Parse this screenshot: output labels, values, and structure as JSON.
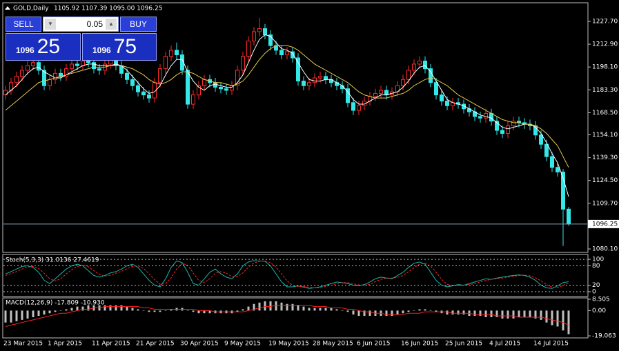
{
  "trade_panel": {
    "sell": "SELL",
    "buy": "BUY",
    "lot": "0.05",
    "bid_big": "1096",
    "bid_small": "25",
    "ask_big": "1096",
    "ask_small": "75"
  },
  "chart_data": [
    {
      "type": "candlestick",
      "title": "GOLD,Daily",
      "subtitle": "1105.92 1107.39 1095.00 1096.25",
      "categories": [
        "23 Mar 2015",
        null,
        null,
        null,
        null,
        null,
        null,
        null,
        "1 Apr 2015",
        null,
        null,
        null,
        null,
        null,
        null,
        null,
        "11 Apr 2015",
        null,
        null,
        null,
        null,
        null,
        null,
        null,
        "21 Apr 2015",
        null,
        null,
        null,
        null,
        null,
        null,
        null,
        "30 Apr 2015",
        null,
        null,
        null,
        null,
        null,
        null,
        null,
        "9 May 2015",
        null,
        null,
        null,
        null,
        null,
        null,
        null,
        "19 May 2015",
        null,
        null,
        null,
        null,
        null,
        null,
        null,
        "28 May 2015",
        null,
        null,
        null,
        null,
        null,
        null,
        null,
        "6 Jun 2015",
        null,
        null,
        null,
        null,
        null,
        null,
        null,
        "16 Jun 2015",
        null,
        null,
        null,
        null,
        null,
        null,
        null,
        "25 Jun 2015",
        null,
        null,
        null,
        null,
        null,
        null,
        null,
        "4 Jul 2015",
        null,
        null,
        null,
        null,
        null,
        null,
        null,
        "14 Jul 2015",
        null,
        null,
        null,
        null,
        null,
        null
      ],
      "open": [
        1180,
        1183,
        1188,
        1192,
        1196,
        1199,
        1201,
        1196,
        1186,
        1190,
        1194,
        1192,
        1197,
        1200,
        1199,
        1202,
        1201,
        1197,
        1196,
        1200,
        1203,
        1199,
        1194,
        1190,
        1186,
        1182,
        1180,
        1178,
        1188,
        1197,
        1205,
        1209,
        1206,
        1196,
        1174,
        1180,
        1186,
        1190,
        1188,
        1185,
        1184,
        1183,
        1186,
        1196,
        1205,
        1215,
        1221,
        1223,
        1219,
        1212,
        1209,
        1206,
        1208,
        1204,
        1189,
        1186,
        1188,
        1191,
        1192,
        1190,
        1188,
        1186,
        1184,
        1175,
        1170,
        1173,
        1176,
        1179,
        1181,
        1183,
        1180,
        1182,
        1186,
        1190,
        1196,
        1200,
        1202,
        1197,
        1188,
        1180,
        1176,
        1173,
        1175,
        1174,
        1171,
        1169,
        1166,
        1165,
        1168,
        1163,
        1157,
        1155,
        1160,
        1163,
        1162,
        1161,
        1160,
        1154,
        1148,
        1140,
        1133,
        1130,
        1105.92
      ],
      "high": [
        1186,
        1191,
        1195,
        1199,
        1202,
        1204,
        1204,
        1199,
        1193,
        1197,
        1197,
        1200,
        1203,
        1203,
        1205,
        1205,
        1204,
        1200,
        1203,
        1206,
        1206,
        1202,
        1197,
        1193,
        1189,
        1185,
        1183,
        1191,
        1200,
        1208,
        1212,
        1214,
        1209,
        1199,
        1183,
        1189,
        1193,
        1193,
        1191,
        1188,
        1187,
        1189,
        1199,
        1208,
        1218,
        1224,
        1230,
        1226,
        1222,
        1215,
        1212,
        1211,
        1211,
        1207,
        1192,
        1191,
        1194,
        1195,
        1195,
        1193,
        1191,
        1189,
        1187,
        1178,
        1176,
        1179,
        1182,
        1184,
        1186,
        1186,
        1185,
        1189,
        1193,
        1199,
        1203,
        1205,
        1205,
        1200,
        1191,
        1183,
        1179,
        1178,
        1178,
        1177,
        1174,
        1172,
        1169,
        1171,
        1171,
        1166,
        1160,
        1163,
        1166,
        1166,
        1165,
        1164,
        1163,
        1157,
        1151,
        1143,
        1136,
        1132,
        1107.39
      ],
      "low": [
        1177,
        1180,
        1185,
        1189,
        1193,
        1196,
        1193,
        1183,
        1183,
        1187,
        1189,
        1189,
        1194,
        1196,
        1196,
        1198,
        1194,
        1193,
        1193,
        1197,
        1196,
        1191,
        1187,
        1183,
        1179,
        1177,
        1175,
        1175,
        1185,
        1194,
        1202,
        1203,
        1193,
        1171,
        1171,
        1177,
        1183,
        1185,
        1182,
        1181,
        1180,
        1180,
        1183,
        1193,
        1202,
        1212,
        1218,
        1216,
        1209,
        1206,
        1203,
        1203,
        1201,
        1186,
        1183,
        1183,
        1185,
        1188,
        1187,
        1185,
        1183,
        1181,
        1172,
        1167,
        1167,
        1170,
        1173,
        1176,
        1178,
        1177,
        1177,
        1179,
        1183,
        1187,
        1193,
        1197,
        1194,
        1185,
        1177,
        1173,
        1170,
        1170,
        1171,
        1168,
        1166,
        1163,
        1162,
        1162,
        1160,
        1154,
        1152,
        1152,
        1157,
        1159,
        1158,
        1157,
        1151,
        1145,
        1137,
        1130,
        1127,
        1082,
        1095.0
      ],
      "close": [
        1183,
        1188,
        1192,
        1196,
        1199,
        1201,
        1196,
        1186,
        1190,
        1194,
        1192,
        1197,
        1200,
        1199,
        1202,
        1201,
        1197,
        1196,
        1200,
        1203,
        1199,
        1194,
        1190,
        1186,
        1182,
        1180,
        1178,
        1188,
        1197,
        1205,
        1209,
        1206,
        1196,
        1174,
        1180,
        1186,
        1190,
        1188,
        1185,
        1184,
        1183,
        1186,
        1196,
        1205,
        1215,
        1221,
        1223,
        1219,
        1212,
        1209,
        1206,
        1208,
        1204,
        1189,
        1186,
        1188,
        1191,
        1192,
        1190,
        1188,
        1186,
        1184,
        1175,
        1170,
        1173,
        1176,
        1179,
        1181,
        1183,
        1180,
        1182,
        1186,
        1190,
        1196,
        1200,
        1202,
        1197,
        1188,
        1180,
        1176,
        1173,
        1175,
        1174,
        1171,
        1169,
        1166,
        1165,
        1168,
        1163,
        1157,
        1155,
        1160,
        1163,
        1162,
        1161,
        1160,
        1154,
        1148,
        1140,
        1133,
        1130,
        1105.92,
        1096.25
      ],
      "up_color": "#ff2a2a",
      "down_color": "#33e8e8",
      "series": [
        {
          "color": "#ffffff",
          "values": [
            1180,
            1183,
            1186,
            1190,
            1194,
            1197,
            1198,
            1195,
            1193,
            1191,
            1191,
            1193,
            1195,
            1197,
            1199,
            1200,
            1200,
            1199,
            1199,
            1199,
            1200,
            1199,
            1196,
            1192,
            1188,
            1184,
            1181,
            1182,
            1186,
            1193,
            1199,
            1203,
            1203,
            1195,
            1189,
            1185,
            1183,
            1186,
            1187,
            1186,
            1185,
            1185,
            1188,
            1193,
            1201,
            1209,
            1216,
            1219,
            1218,
            1214,
            1210,
            1209,
            1207,
            1201,
            1195,
            1190,
            1189,
            1189,
            1190,
            1190,
            1188,
            1186,
            1182,
            1177,
            1174,
            1174,
            1176,
            1178,
            1180,
            1180,
            1181,
            1182,
            1185,
            1189,
            1194,
            1198,
            1199,
            1195,
            1189,
            1183,
            1177,
            1175,
            1174,
            1173,
            1171,
            1169,
            1167,
            1166,
            1165,
            1162,
            1159,
            1158,
            1159,
            1160,
            1161,
            1161,
            1159,
            1155,
            1149,
            1142,
            1136,
            1126,
            1114
          ]
        },
        {
          "color": "#e6c84a",
          "values": [
            1170,
            1173,
            1176,
            1179,
            1182,
            1185,
            1188,
            1189,
            1190,
            1191,
            1192,
            1193,
            1194,
            1195,
            1196,
            1197,
            1198,
            1198,
            1198,
            1199,
            1199,
            1199,
            1198,
            1197,
            1195,
            1193,
            1190,
            1188,
            1187,
            1188,
            1190,
            1193,
            1195,
            1195,
            1194,
            1192,
            1190,
            1189,
            1188,
            1188,
            1187,
            1186,
            1187,
            1189,
            1193,
            1198,
            1203,
            1207,
            1210,
            1212,
            1212,
            1212,
            1211,
            1209,
            1206,
            1203,
            1200,
            1198,
            1196,
            1194,
            1192,
            1190,
            1188,
            1185,
            1182,
            1180,
            1179,
            1178,
            1178,
            1178,
            1179,
            1180,
            1181,
            1183,
            1186,
            1188,
            1190,
            1191,
            1190,
            1188,
            1186,
            1183,
            1180,
            1178,
            1176,
            1174,
            1172,
            1170,
            1168,
            1166,
            1164,
            1163,
            1162,
            1162,
            1161,
            1161,
            1160,
            1158,
            1155,
            1151,
            1147,
            1140,
            1133
          ]
        }
      ],
      "last": 1096.25,
      "ylim": [
        1077.86,
        1239.33
      ],
      "yticks": [
        {
          "value": 1227.7,
          "label": "1227.70"
        },
        {
          "value": 1212.9,
          "label": "1212.90"
        },
        {
          "value": 1198.1,
          "label": "1198.10"
        },
        {
          "value": 1183.3,
          "label": "1183.30"
        },
        {
          "value": 1168.5,
          "label": "1168.50"
        },
        {
          "value": 1154.1,
          "label": "1154.10"
        },
        {
          "value": 1139.3,
          "label": "1139.30"
        },
        {
          "value": 1124.5,
          "label": "1124.50"
        },
        {
          "value": 1109.7,
          "label": "1109.70"
        },
        {
          "value": 1080.1,
          "label": "1080.10"
        }
      ]
    },
    {
      "type": "line",
      "title": "Stoch(5,3,3) 31.0136 27.4619",
      "series": [
        {
          "color": "#20b2aa",
          "values": [
            55,
            62,
            70,
            78,
            80,
            75,
            60,
            35,
            25,
            40,
            55,
            70,
            80,
            85,
            80,
            65,
            50,
            45,
            50,
            58,
            62,
            70,
            80,
            85,
            75,
            55,
            35,
            20,
            15,
            40,
            75,
            95,
            90,
            60,
            25,
            20,
            40,
            60,
            70,
            55,
            45,
            40,
            55,
            80,
            92,
            96,
            95,
            94,
            80,
            55,
            30,
            15,
            15,
            18,
            14,
            10,
            12,
            15,
            20,
            25,
            30,
            28,
            25,
            20,
            18,
            22,
            30,
            40,
            45,
            42,
            40,
            50,
            60,
            75,
            88,
            92,
            85,
            60,
            35,
            20,
            15,
            18,
            22,
            20,
            25,
            30,
            35,
            40,
            38,
            42,
            45,
            48,
            50,
            52,
            50,
            45,
            35,
            20,
            12,
            10,
            18,
            28,
            31.0136
          ]
        },
        {
          "color": "#ff2020",
          "dashed": true,
          "values": [
            50,
            56,
            62,
            70,
            76,
            78,
            72,
            57,
            40,
            33,
            40,
            55,
            68,
            78,
            82,
            77,
            65,
            53,
            48,
            51,
            57,
            63,
            71,
            78,
            80,
            72,
            55,
            37,
            23,
            25,
            43,
            70,
            87,
            82,
            58,
            35,
            28,
            40,
            57,
            62,
            57,
            47,
            47,
            58,
            76,
            89,
            94,
            95,
            90,
            76,
            55,
            33,
            20,
            16,
            16,
            14,
            12,
            12,
            16,
            20,
            25,
            28,
            28,
            24,
            21,
            20,
            23,
            31,
            38,
            42,
            42,
            44,
            50,
            62,
            74,
            85,
            88,
            79,
            60,
            38,
            23,
            18,
            18,
            20,
            22,
            25,
            30,
            35,
            38,
            40,
            42,
            45,
            48,
            50,
            51,
            49,
            43,
            33,
            22,
            14,
            13,
            19,
            27.4619
          ]
        }
      ],
      "ylim": [
        -15,
        113
      ],
      "yticks": [
        100,
        80,
        20,
        0
      ]
    },
    {
      "type": "histogram-line",
      "title": "MACD(12,26,9) -17.809 -10.930",
      "values": [
        -9,
        -9,
        -8,
        -7,
        -6,
        -5,
        -4,
        -3,
        -2,
        -1,
        0,
        1,
        2,
        3,
        3,
        4,
        4,
        4,
        4,
        4,
        4,
        4,
        3,
        2,
        1,
        0,
        -1,
        -1,
        -1,
        0,
        1,
        2,
        2,
        0,
        -1,
        -2,
        -2,
        -2,
        -2,
        -2,
        -2,
        -2,
        -1,
        1,
        3,
        5,
        6,
        7,
        7,
        7,
        6,
        5,
        5,
        4,
        3,
        2,
        2,
        2,
        2,
        2,
        1,
        0,
        -1,
        -3,
        -4,
        -4,
        -4,
        -4,
        -4,
        -4,
        -4,
        -3,
        -2,
        -1,
        0,
        1,
        1,
        0,
        -1,
        -2,
        -3,
        -3,
        -3,
        -3,
        -4,
        -4,
        -4,
        -5,
        -5,
        -5,
        -6,
        -6,
        -6,
        -5,
        -5,
        -5,
        -6,
        -7,
        -9,
        -11,
        -12,
        -15,
        -17.809
      ],
      "color": "#c0c0c0",
      "series": [
        {
          "color": "#ff2020",
          "values": [
            -12,
            -11,
            -10,
            -9,
            -8,
            -7,
            -6,
            -5,
            -4,
            -3,
            -2,
            -2,
            -1,
            0,
            1,
            1,
            2,
            2,
            3,
            3,
            3,
            3,
            3,
            3,
            3,
            2,
            2,
            1,
            1,
            1,
            1,
            1,
            1,
            1,
            1,
            0,
            0,
            0,
            -1,
            -1,
            -1,
            -1,
            -1,
            -1,
            0,
            1,
            2,
            3,
            3,
            4,
            4,
            4,
            4,
            4,
            4,
            4,
            3,
            3,
            3,
            2,
            2,
            2,
            1,
            1,
            0,
            -1,
            -1,
            -2,
            -2,
            -3,
            -3,
            -3,
            -3,
            -2,
            -2,
            -2,
            -1,
            -1,
            -1,
            -1,
            -1,
            -2,
            -2,
            -2,
            -2,
            -3,
            -3,
            -3,
            -3,
            -4,
            -4,
            -4,
            -4,
            -5,
            -5,
            -5,
            -5,
            -5,
            -6,
            -7,
            -8,
            -9,
            -10.93
          ]
        }
      ],
      "ylim": [
        -20.6,
        9.55
      ],
      "yticks": [
        8.505,
        {
          "value": 0,
          "label": "0.00"
        },
        -19.063
      ]
    }
  ]
}
